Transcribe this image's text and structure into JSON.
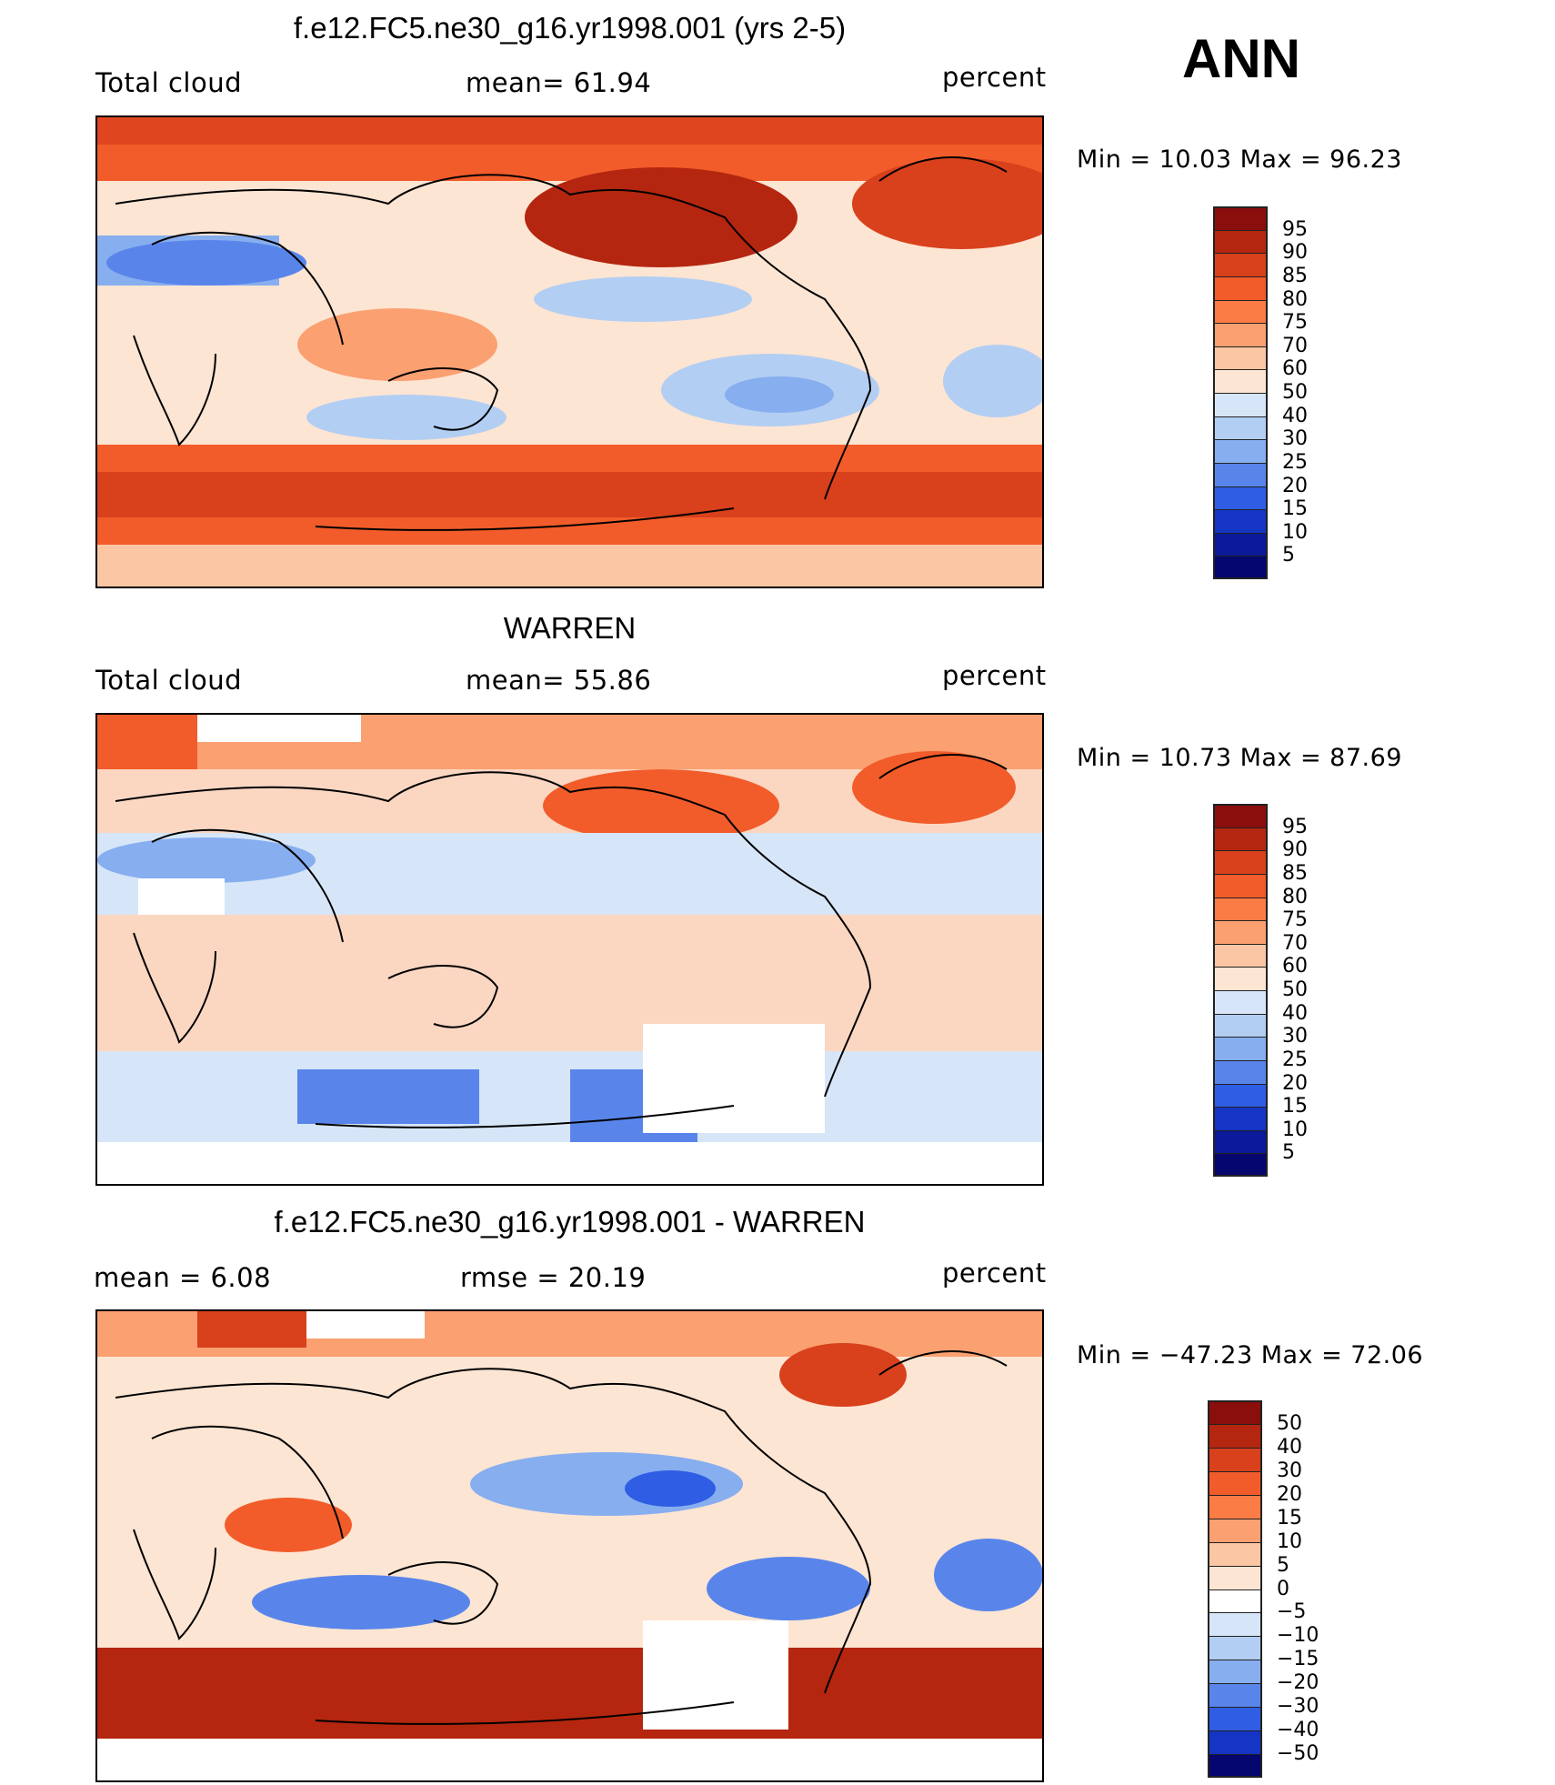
{
  "season_label": "ANN",
  "panels": [
    {
      "id": "model",
      "title": "f.e12.FC5.ne30_g16.yr1998.001 (yrs 2-5)",
      "left_label": "Total cloud",
      "center_label": "mean=   61.94",
      "right_label": "percent",
      "minmax": "Min  =    10.03  Max  =    96.23",
      "colorbar": {
        "ticks": [
          "95",
          "90",
          "85",
          "80",
          "75",
          "70",
          "60",
          "50",
          "40",
          "30",
          "25",
          "20",
          "15",
          "10",
          "5"
        ],
        "colors": [
          "#8a0e0c",
          "#b4260f",
          "#d9401c",
          "#f25c2a",
          "#fb7c45",
          "#fba071",
          "#fbc6a4",
          "#fde5d3",
          "#d6e6f8",
          "#b3cef3",
          "#87aeef",
          "#5985eb",
          "#2f5ee4",
          "#1535c4",
          "#0a1a9a",
          "#05066e"
        ]
      },
      "field_color": "#fde5d3"
    },
    {
      "id": "obs",
      "title": "WARREN",
      "left_label": "Total cloud",
      "center_label": "mean=   55.86",
      "right_label": "percent",
      "minmax": "Min  =    10.73  Max  =    87.69",
      "colorbar": {
        "ticks": [
          "95",
          "90",
          "85",
          "80",
          "75",
          "70",
          "60",
          "50",
          "40",
          "30",
          "25",
          "20",
          "15",
          "10",
          "5"
        ],
        "colors": [
          "#8a0e0c",
          "#b4260f",
          "#d9401c",
          "#f25c2a",
          "#fb7c45",
          "#fba071",
          "#fbc6a4",
          "#fde5d3",
          "#d6e6f8",
          "#b3cef3",
          "#87aeef",
          "#5985eb",
          "#2f5ee4",
          "#1535c4",
          "#0a1a9a",
          "#05066e"
        ]
      },
      "field_color": "#fbd7c2"
    },
    {
      "id": "diff",
      "title": "f.e12.FC5.ne30_g16.yr1998.001 - WARREN",
      "left_label": "mean  =     6.08",
      "center_label": "rmse  =    20.19",
      "right_label": "percent",
      "minmax": "Min  = −47.23  Max  =    72.06",
      "colorbar": {
        "ticks": [
          "50",
          "40",
          "30",
          "20",
          "15",
          "10",
          "5",
          "0",
          "−5",
          "−10",
          "−15",
          "−20",
          "−30",
          "−40",
          "−50"
        ],
        "colors": [
          "#8a0e0c",
          "#b4260f",
          "#d9401c",
          "#f25c2a",
          "#fb7c45",
          "#fba071",
          "#fbc6a4",
          "#fde5d3",
          "#ffffff",
          "#d6e6f8",
          "#b3cef3",
          "#87aeef",
          "#5985eb",
          "#2f5ee4",
          "#1535c4",
          "#05066e"
        ]
      },
      "field_color": "#fde5d3"
    }
  ]
}
